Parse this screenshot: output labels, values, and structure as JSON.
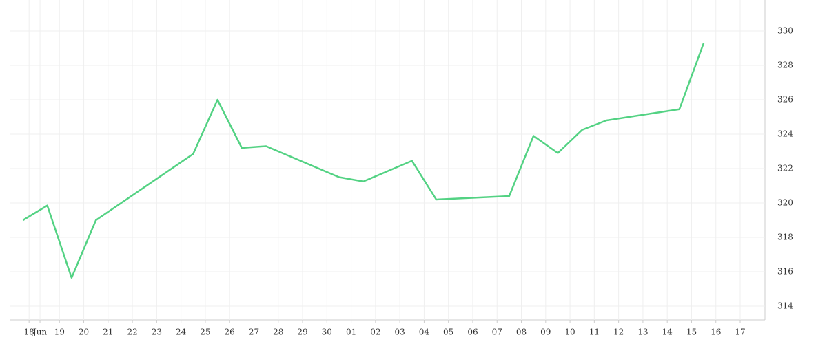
{
  "chart_data": {
    "type": "line",
    "x": [
      -0.5,
      0.5,
      1.5,
      2.5,
      6.5,
      7.5,
      8.5,
      9.5,
      12.5,
      13.5,
      14.5,
      15.5,
      16.5,
      19.5,
      20.5,
      21.5,
      22.5,
      23.5,
      26.5,
      27.5
    ],
    "series": [
      {
        "color": "#53d283",
        "values": [
          319.0,
          319.85,
          315.65,
          319.0,
          322.85,
          326.0,
          323.2,
          323.3,
          321.5,
          321.25,
          321.85,
          322.45,
          320.2,
          320.4,
          323.9,
          322.9,
          324.25,
          324.8,
          325.45,
          329.3
        ]
      }
    ],
    "xlim": [
      -1.02,
      30.02
    ],
    "xticks": [
      {
        "value": -0.25,
        "label": "18"
      },
      {
        "value": 0.2,
        "label": "Jun"
      },
      {
        "value": 1,
        "label": "19"
      },
      {
        "value": 2,
        "label": "20"
      },
      {
        "value": 3,
        "label": "21"
      },
      {
        "value": 4,
        "label": "22"
      },
      {
        "value": 5,
        "label": "23"
      },
      {
        "value": 6,
        "label": "24"
      },
      {
        "value": 7,
        "label": "25"
      },
      {
        "value": 8,
        "label": "26"
      },
      {
        "value": 9,
        "label": "27"
      },
      {
        "value": 10,
        "label": "28"
      },
      {
        "value": 11,
        "label": "29"
      },
      {
        "value": 12,
        "label": "30"
      },
      {
        "value": 13,
        "label": "01"
      },
      {
        "value": 14,
        "label": "02"
      },
      {
        "value": 15,
        "label": "03"
      },
      {
        "value": 16,
        "label": "04"
      },
      {
        "value": 17,
        "label": "05"
      },
      {
        "value": 18,
        "label": "06"
      },
      {
        "value": 19,
        "label": "07"
      },
      {
        "value": 20,
        "label": "08"
      },
      {
        "value": 21,
        "label": "09"
      },
      {
        "value": 22,
        "label": "10"
      },
      {
        "value": 23,
        "label": "11"
      },
      {
        "value": 24,
        "label": "12"
      },
      {
        "value": 25,
        "label": "13"
      },
      {
        "value": 26,
        "label": "14"
      },
      {
        "value": 27,
        "label": "15"
      },
      {
        "value": 28,
        "label": "16"
      },
      {
        "value": 29,
        "label": "17"
      }
    ],
    "ylim": [
      313.2,
      331.8
    ],
    "yticks": [
      314,
      316,
      318,
      320,
      322,
      324,
      326,
      328,
      330
    ],
    "grid": true
  }
}
